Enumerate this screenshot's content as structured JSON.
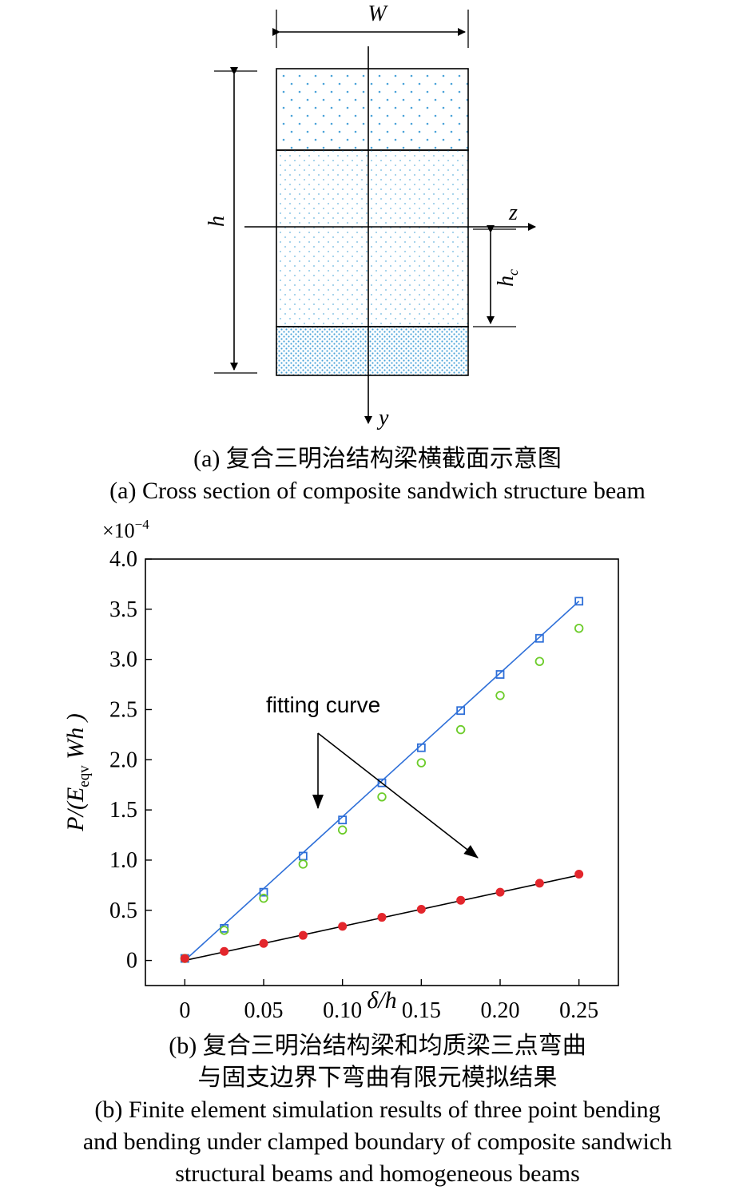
{
  "figure_a": {
    "labels": {
      "width": "W",
      "height": "h",
      "core_height": "h",
      "core_height_sub": "c",
      "z_axis": "z",
      "y_axis": "y"
    },
    "caption_cn": "(a) 复合三明治结构梁横截面示意图",
    "caption_en": "(a) Cross section of composite sandwich structure beam",
    "colors": {
      "dots": "#4aa3d9",
      "outline": "#000000"
    }
  },
  "chart_data": {
    "type": "scatter",
    "title": "",
    "xlabel": "δ/h",
    "ylabel": "P/(E_eqv Wh )",
    "ylabel_parts": {
      "pre": "P/(",
      "E": "E",
      "sub": "eqv",
      "post": " Wh )"
    },
    "xlim": [
      -0.025,
      0.275
    ],
    "ylim": [
      -0.25,
      4.0
    ],
    "y_multiplier": "×10",
    "y_multiplier_exp": "−4",
    "x_ticks": [
      "0",
      "0.05",
      "0.10",
      "0.15",
      "0.20",
      "0.25"
    ],
    "x_tick_values": [
      0,
      0.05,
      0.1,
      0.15,
      0.2,
      0.25
    ],
    "y_ticks": [
      "0",
      "0.5",
      "1.0",
      "1.5",
      "2.0",
      "2.5",
      "3.0",
      "3.5",
      "4.0"
    ],
    "y_tick_values": [
      0,
      0.5,
      1.0,
      1.5,
      2.0,
      2.5,
      3.0,
      3.5,
      4.0
    ],
    "annotation": "fitting curve",
    "series": [
      {
        "marker": "square",
        "color": "#2e6fd8",
        "x": [
          0,
          0.025,
          0.05,
          0.075,
          0.1,
          0.125,
          0.15,
          0.175,
          0.2,
          0.225,
          0.25
        ],
        "y": [
          0.02,
          0.32,
          0.68,
          1.04,
          1.4,
          1.77,
          2.12,
          2.49,
          2.85,
          3.21,
          3.58
        ]
      },
      {
        "marker": "circle",
        "color": "#6ccc2a",
        "x": [
          0,
          0.025,
          0.05,
          0.075,
          0.1,
          0.125,
          0.15,
          0.175,
          0.2,
          0.225,
          0.25
        ],
        "y": [
          0.02,
          0.3,
          0.62,
          0.96,
          1.3,
          1.63,
          1.97,
          2.3,
          2.64,
          2.98,
          3.31
        ]
      },
      {
        "marker": "filled-circle",
        "color": "#e3262c",
        "x": [
          0,
          0.025,
          0.05,
          0.075,
          0.1,
          0.125,
          0.15,
          0.175,
          0.2,
          0.225,
          0.25
        ],
        "y": [
          0.02,
          0.09,
          0.17,
          0.25,
          0.34,
          0.43,
          0.51,
          0.6,
          0.68,
          0.77,
          0.86
        ]
      }
    ],
    "fits": [
      {
        "color": "#2e6fd8",
        "x": [
          0,
          0.25
        ],
        "y": [
          0,
          3.58
        ]
      },
      {
        "color": "#000000",
        "x": [
          0,
          0.25
        ],
        "y": [
          0,
          0.85
        ]
      }
    ]
  },
  "figure_b": {
    "caption_cn_line1": "(b) 复合三明治结构梁和均质梁三点弯曲",
    "caption_cn_line2": "与固支边界下弯曲有限元模拟结果",
    "caption_en_line1": "(b) Finite element simulation results of three point bending",
    "caption_en_line2": "and bending under clamped boundary of composite sandwich",
    "caption_en_line3": "structural beams and homogeneous beams"
  }
}
